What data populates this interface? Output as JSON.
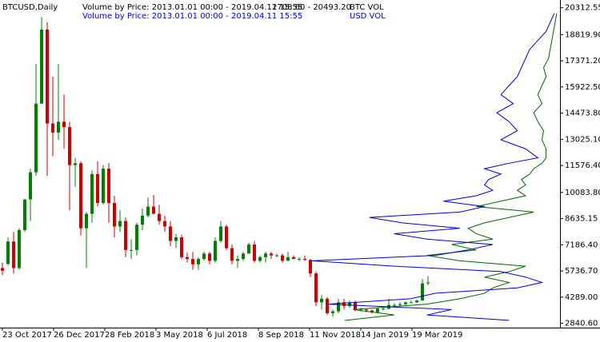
{
  "chart_data": {
    "type": "candlestick",
    "title": "BTCUSD,Daily",
    "up_color": "#008000",
    "down_color": "#cc0000",
    "x": [
      "2017-10-23",
      "2017-10-30",
      "2017-11-06",
      "2017-11-13",
      "2017-11-20",
      "2017-11-27",
      "2017-12-04",
      "2017-12-11",
      "2017-12-18",
      "2017-12-25",
      "2018-01-01",
      "2018-01-08",
      "2018-01-15",
      "2018-01-22",
      "2018-01-29",
      "2018-02-05",
      "2018-02-12",
      "2018-02-19",
      "2018-02-26",
      "2018-03-05",
      "2018-03-12",
      "2018-03-19",
      "2018-03-26",
      "2018-04-02",
      "2018-04-09",
      "2018-04-16",
      "2018-04-23",
      "2018-04-30",
      "2018-05-07",
      "2018-05-14",
      "2018-05-21",
      "2018-05-28",
      "2018-06-04",
      "2018-06-11",
      "2018-06-18",
      "2018-06-25",
      "2018-07-02",
      "2018-07-09",
      "2018-07-16",
      "2018-07-23",
      "2018-07-30",
      "2018-08-06",
      "2018-08-13",
      "2018-08-20",
      "2018-08-27",
      "2018-09-03",
      "2018-09-10",
      "2018-09-17",
      "2018-09-24",
      "2018-10-01",
      "2018-10-08",
      "2018-10-15",
      "2018-10-22",
      "2018-10-29",
      "2018-11-05",
      "2018-11-12",
      "2018-11-19",
      "2018-11-26",
      "2018-12-03",
      "2018-12-10",
      "2018-12-17",
      "2018-12-24",
      "2018-12-31",
      "2019-01-07",
      "2019-01-14",
      "2019-01-21",
      "2019-01-28",
      "2019-02-04",
      "2019-02-11",
      "2019-02-18",
      "2019-02-25",
      "2019-03-04",
      "2019-03-11",
      "2019-03-18",
      "2019-03-25",
      "2019-04-01",
      "2019-04-08"
    ],
    "open": [
      5900,
      6130,
      7370,
      5900,
      8000,
      9700,
      11200,
      15000,
      19100,
      13900,
      13400,
      14000,
      13700,
      11600,
      11700,
      8100,
      8900,
      11100,
      9500,
      11400,
      9500,
      8200,
      8500,
      6900,
      6900,
      8300,
      8800,
      9300,
      8900,
      8500,
      8200,
      7400,
      7600,
      6500,
      6400,
      6100,
      6400,
      6700,
      6300,
      7400,
      8200,
      7000,
      6300,
      6400,
      6700,
      7200,
      6300,
      6500,
      6700,
      6600,
      6600,
      6300,
      6500,
      6400,
      6400,
      6350,
      5600,
      4000,
      4200,
      3400,
      3500,
      4000,
      3800,
      4000,
      3600,
      3600,
      3550,
      3450,
      3650,
      3650,
      3850,
      3850,
      3900,
      4000,
      4000,
      4100,
      5050
    ],
    "high": [
      6200,
      7600,
      7900,
      8100,
      9700,
      11400,
      17200,
      19800,
      19500,
      16500,
      17200,
      15500,
      14000,
      12000,
      11800,
      9000,
      11300,
      11800,
      11600,
      11700,
      9900,
      9100,
      8700,
      7500,
      8400,
      9200,
      9800,
      9950,
      9400,
      8800,
      8500,
      7800,
      7750,
      6750,
      6800,
      6500,
      6800,
      6800,
      7600,
      8500,
      8300,
      7200,
      6600,
      6800,
      7300,
      7400,
      6600,
      6800,
      6800,
      6700,
      6700,
      6800,
      6600,
      6500,
      6600,
      6400,
      5700,
      4400,
      4300,
      3600,
      4200,
      4200,
      4100,
      4100,
      3700,
      3650,
      3600,
      3700,
      3700,
      4200,
      3950,
      4000,
      4050,
      4100,
      4150,
      5300,
      5450
    ],
    "low": [
      5500,
      6050,
      5600,
      5800,
      7900,
      8500,
      11000,
      15000,
      11000,
      12100,
      13000,
      12500,
      9100,
      10400,
      7700,
      5900,
      8400,
      9300,
      9400,
      8400,
      7600,
      7900,
      6500,
      6400,
      6600,
      8000,
      8700,
      8900,
      8300,
      7900,
      7100,
      7000,
      6400,
      6200,
      5800,
      5800,
      6300,
      6100,
      6200,
      7300,
      6900,
      6100,
      5900,
      6300,
      6700,
      6200,
      6200,
      6200,
      6400,
      6500,
      6200,
      6300,
      6400,
      6300,
      6300,
      5400,
      3800,
      3600,
      3300,
      3200,
      3400,
      3600,
      3700,
      3500,
      3500,
      3450,
      3380,
      3400,
      3550,
      3600,
      3750,
      3750,
      3850,
      3950,
      3950,
      4100,
      4950
    ],
    "close": [
      5750,
      7370,
      5900,
      8000,
      9700,
      11200,
      15000,
      19100,
      13900,
      13400,
      14000,
      13700,
      11600,
      11700,
      8100,
      8900,
      11100,
      9500,
      11400,
      9500,
      8200,
      8500,
      6900,
      6900,
      8300,
      8800,
      9300,
      8900,
      8500,
      8200,
      7400,
      7600,
      6500,
      6400,
      6100,
      6400,
      6700,
      6300,
      7400,
      8200,
      7000,
      6300,
      6400,
      6700,
      7200,
      6300,
      6500,
      6700,
      6600,
      6600,
      6300,
      6500,
      6400,
      6400,
      6350,
      5600,
      4000,
      4200,
      3400,
      3500,
      4000,
      3800,
      4000,
      3600,
      3600,
      3550,
      3450,
      3650,
      3650,
      3850,
      3850,
      3900,
      4000,
      4000,
      4100,
      5050,
      5100
    ],
    "xlim": [
      "2017-10-20",
      "2019-09-18"
    ],
    "xticks": [
      {
        "value": "2017-10-23",
        "label": "23 Oct 2017"
      },
      {
        "value": "2017-12-26",
        "label": "26 Dec 2017"
      },
      {
        "value": "2018-02-28",
        "label": "28 Feb 2018"
      },
      {
        "value": "2018-05-03",
        "label": "3 May 2018"
      },
      {
        "value": "2018-07-06",
        "label": "6 Jul 2018"
      },
      {
        "value": "2018-09-08",
        "label": "8 Sep 2018"
      },
      {
        "value": "2018-11-11",
        "label": "11 Nov 2018"
      },
      {
        "value": "2019-01-14",
        "label": "14 Jan 2019"
      },
      {
        "value": "2019-03-19",
        "label": "19 Mar 2019"
      }
    ],
    "ylim": [
      2600,
      20650
    ],
    "yticks": [
      {
        "value": 20312.55,
        "label": "20312.55"
      },
      {
        "value": 18819.9,
        "label": "18819.90"
      },
      {
        "value": 17371.2,
        "label": "17371.20"
      },
      {
        "value": 15922.5,
        "label": "15922.50"
      },
      {
        "value": 14473.8,
        "label": "14473.80"
      },
      {
        "value": 13025.1,
        "label": "13025.10"
      },
      {
        "value": 11576.4,
        "label": "11576.40"
      },
      {
        "value": 10083.8,
        "label": "10083.80"
      },
      {
        "value": 8635.15,
        "label": "8635.15"
      },
      {
        "value": 7186.4,
        "label": "7186.40"
      },
      {
        "value": 5736.7,
        "label": "5736.70"
      },
      {
        "value": 4289,
        "label": "4289.00"
      },
      {
        "value": 2840.6,
        "label": "2840.60"
      }
    ],
    "profile": {
      "range": "2708.60 - 20493.20",
      "prices": [
        3000,
        3300,
        3600,
        3900,
        4200,
        4500,
        4800,
        5100,
        5400,
        5700,
        6000,
        6300,
        6600,
        6900,
        7200,
        7500,
        7800,
        8100,
        8400,
        8700,
        9000,
        9300,
        9600,
        9900,
        10200,
        10500,
        10800,
        11100,
        11400,
        11700,
        12000,
        12500,
        13000,
        13500,
        14000,
        14500,
        15000,
        15500,
        16000,
        16500,
        17000,
        17500,
        18000,
        18500,
        19000,
        19500,
        20000
      ],
      "series": [
        {
          "name": "BTC VOL",
          "label": "Volume by Price: 2013.01.01 00:00 - 2019.04.11 15:55",
          "color": "#006400",
          "values": [
            260,
            200,
            250,
            160,
            120,
            90,
            80,
            60,
            90,
            60,
            40,
            120,
            160,
            100,
            130,
            80,
            100,
            110,
            90,
            60,
            30,
            100,
            70,
            40,
            50,
            40,
            45,
            35,
            30,
            20,
            15,
            15,
            20,
            18,
            25,
            30,
            20,
            25,
            20,
            15,
            18,
            12,
            10,
            8,
            6,
            4,
            2
          ]
        },
        {
          "name": "USD VOL",
          "label": "Volume by Price: 2013.01.01 00:00 - 2019.04.11 15:55",
          "color": "#0000cd",
          "values": [
            60,
            160,
            130,
            280,
            180,
            150,
            50,
            20,
            40,
            70,
            200,
            300,
            150,
            110,
            80,
            160,
            200,
            120,
            190,
            230,
            120,
            90,
            140,
            100,
            80,
            90,
            85,
            70,
            90,
            60,
            25,
            40,
            70,
            50,
            60,
            75,
            55,
            70,
            60,
            50,
            45,
            40,
            35,
            25,
            15,
            10,
            5
          ]
        }
      ]
    }
  }
}
